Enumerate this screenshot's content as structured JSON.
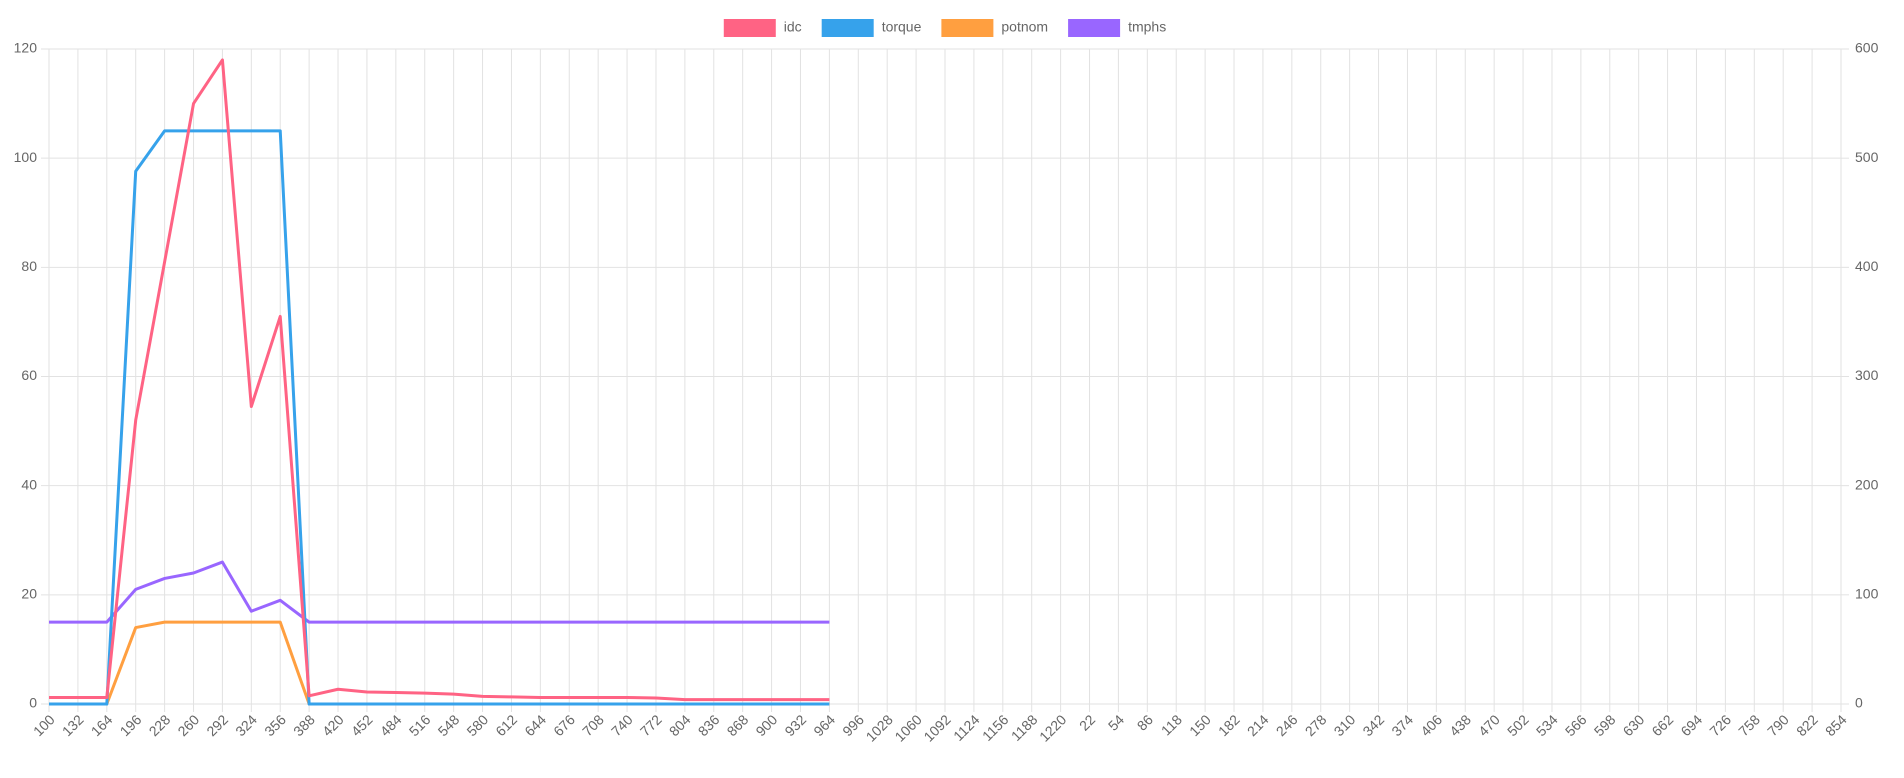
{
  "chart_data": {
    "type": "line",
    "categories": [
      100,
      132,
      164,
      196,
      228,
      260,
      292,
      324,
      356,
      388,
      420,
      452,
      484,
      516,
      548,
      580,
      612,
      644,
      676,
      708,
      740,
      772,
      804,
      836,
      868,
      900,
      932,
      964,
      996,
      1028,
      1060,
      1092,
      1124,
      1156,
      1188,
      1220,
      22,
      54,
      86,
      118,
      150,
      182,
      214,
      246,
      278,
      310,
      342,
      374,
      406,
      438,
      470,
      502,
      534,
      566,
      598,
      630,
      662,
      694,
      726,
      758,
      790,
      822,
      854
    ],
    "series": [
      {
        "name": "idc",
        "color": "#ff6384",
        "values": [
          1.2,
          1.2,
          1.2,
          52,
          81,
          110,
          118,
          54.5,
          71,
          1.5,
          2.7,
          2.2,
          2.1,
          2,
          1.8,
          1.4,
          1.3,
          1.2,
          1.2,
          1.2,
          1.2,
          1.1,
          0.8,
          0.8,
          0.8,
          0.8,
          0.8,
          0.8,
          null,
          null,
          null,
          null,
          null,
          null,
          null,
          null,
          null,
          null,
          null,
          null,
          null,
          null,
          null,
          null,
          null,
          null,
          null,
          null,
          null,
          null,
          null,
          null,
          null,
          null,
          null,
          null,
          null,
          null,
          null,
          null,
          null,
          null,
          null
        ]
      },
      {
        "name": "torque",
        "color": "#36a2eb",
        "axis": "y2",
        "values": [
          0,
          0,
          0,
          488,
          525,
          525,
          525,
          525,
          525,
          0,
          0,
          0,
          0,
          0,
          0,
          0,
          0,
          0,
          0,
          0,
          0,
          0,
          0,
          0,
          0,
          0,
          0,
          0,
          null,
          null,
          null,
          null,
          null,
          null,
          null,
          null,
          null,
          null,
          null,
          null,
          null,
          null,
          null,
          null,
          null,
          null,
          null,
          null,
          null,
          null,
          null,
          null,
          null,
          null,
          null,
          null,
          null,
          null,
          null,
          null,
          null,
          null,
          null
        ]
      },
      {
        "name": "potnom",
        "color": "#ff9f40",
        "values": [
          0,
          0,
          0,
          14,
          15,
          15,
          15,
          15,
          15,
          0,
          0,
          0,
          0,
          0,
          0,
          0,
          0,
          0,
          0,
          0,
          0,
          0,
          0,
          0,
          0,
          0,
          0,
          0,
          null,
          null,
          null,
          null,
          null,
          null,
          null,
          null,
          null,
          null,
          null,
          null,
          null,
          null,
          null,
          null,
          null,
          null,
          null,
          null,
          null,
          null,
          null,
          null,
          null,
          null,
          null,
          null,
          null,
          null,
          null,
          null,
          null,
          null,
          null
        ]
      },
      {
        "name": "tmphs",
        "color": "#9966ff",
        "values": [
          15,
          15,
          15,
          21,
          23,
          24,
          26,
          17,
          19,
          15,
          15,
          15,
          15,
          15,
          15,
          15,
          15,
          15,
          15,
          15,
          15,
          15,
          15,
          15,
          15,
          15,
          15,
          15,
          null,
          null,
          null,
          null,
          null,
          null,
          null,
          null,
          null,
          null,
          null,
          null,
          null,
          null,
          null,
          null,
          null,
          null,
          null,
          null,
          null,
          null,
          null,
          null,
          null,
          null,
          null,
          null,
          null,
          null,
          null,
          null,
          null,
          null,
          null
        ]
      }
    ],
    "ylim": [
      0,
      120
    ],
    "yticks": [
      0,
      20,
      40,
      60,
      80,
      100,
      120
    ],
    "y2lim": [
      0,
      600
    ],
    "y2ticks": [
      0,
      100,
      200,
      300,
      400,
      500,
      600
    ],
    "grid": true,
    "legend": "top"
  }
}
